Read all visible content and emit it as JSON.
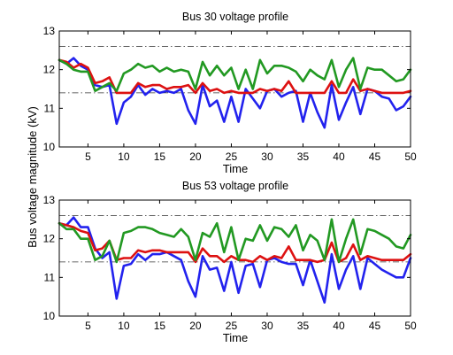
{
  "chart_data": [
    {
      "type": "line",
      "title": "Bus 30 voltage profile",
      "xlabel": "Time",
      "ylabel": "Bus voltage magnitude (kV)",
      "xlim": [
        1,
        50
      ],
      "ylim": [
        10,
        13
      ],
      "xticks": [
        "5",
        "10",
        "15",
        "20",
        "25",
        "30",
        "35",
        "40",
        "45",
        "50"
      ],
      "yticks": [
        "10",
        "11",
        "12",
        "13"
      ],
      "reference_lines": [
        12.6,
        11.4
      ],
      "grid": false,
      "series": [
        {
          "color": "#2222ee",
          "values": [
            12.25,
            12.15,
            12.3,
            12.1,
            12.0,
            11.6,
            11.55,
            11.6,
            10.6,
            11.15,
            11.3,
            11.6,
            11.35,
            11.5,
            11.4,
            11.45,
            11.4,
            11.5,
            10.95,
            10.6,
            11.6,
            11.05,
            11.2,
            10.65,
            11.3,
            10.65,
            11.5,
            11.25,
            11.0,
            11.45,
            11.5,
            11.3,
            11.4,
            11.45,
            10.65,
            11.4,
            10.9,
            10.5,
            11.6,
            10.7,
            11.15,
            11.55,
            10.85,
            11.5,
            11.45,
            11.3,
            11.25,
            10.95,
            11.05,
            11.3
          ]
        },
        {
          "color": "#dd1111",
          "values": [
            12.25,
            12.2,
            12.05,
            12.15,
            12.05,
            11.65,
            11.7,
            11.8,
            11.4,
            11.4,
            11.4,
            11.65,
            11.55,
            11.6,
            11.6,
            11.5,
            11.55,
            11.55,
            11.6,
            11.4,
            11.65,
            11.45,
            11.5,
            11.4,
            11.45,
            11.4,
            11.4,
            11.4,
            11.5,
            11.45,
            11.5,
            11.45,
            11.7,
            11.4,
            11.4,
            11.4,
            11.4,
            11.4,
            11.7,
            11.4,
            11.4,
            11.75,
            11.45,
            11.5,
            11.45,
            11.4,
            11.4,
            11.4,
            11.4,
            11.45
          ]
        },
        {
          "color": "#229922",
          "values": [
            12.25,
            12.15,
            12.0,
            11.95,
            11.95,
            11.45,
            11.55,
            11.65,
            11.45,
            11.9,
            12.0,
            12.15,
            12.05,
            12.1,
            11.95,
            12.05,
            11.95,
            12.0,
            11.95,
            11.5,
            12.2,
            11.85,
            12.1,
            11.85,
            12.05,
            11.5,
            12.0,
            11.5,
            12.25,
            11.9,
            12.1,
            12.1,
            12.05,
            11.95,
            11.7,
            12.0,
            11.85,
            11.75,
            12.25,
            11.55,
            12.0,
            12.3,
            11.5,
            12.05,
            12.0,
            12.0,
            11.85,
            11.7,
            11.75,
            12.0
          ]
        }
      ]
    },
    {
      "type": "line",
      "title": "Bus 53 voltage profile",
      "xlabel": "Time",
      "ylabel": "Bus voltage magnitude (kV)",
      "xlim": [
        1,
        50
      ],
      "ylim": [
        10,
        13
      ],
      "xticks": [
        "5",
        "10",
        "15",
        "20",
        "25",
        "30",
        "35",
        "40",
        "45",
        "50"
      ],
      "yticks": [
        "10",
        "11",
        "12",
        "13"
      ],
      "reference_lines": [
        12.6,
        11.4
      ],
      "grid": false,
      "series": [
        {
          "color": "#2222ee",
          "values": [
            12.4,
            12.35,
            12.55,
            12.3,
            12.3,
            11.75,
            11.5,
            11.65,
            10.45,
            11.3,
            11.35,
            11.6,
            11.45,
            11.6,
            11.6,
            11.65,
            11.55,
            11.45,
            10.9,
            10.5,
            11.55,
            11.2,
            11.25,
            10.65,
            11.4,
            10.6,
            11.3,
            11.35,
            10.75,
            11.45,
            11.5,
            11.4,
            11.35,
            11.35,
            10.8,
            11.45,
            10.9,
            10.35,
            11.6,
            10.7,
            11.2,
            11.55,
            10.7,
            11.5,
            11.35,
            11.2,
            11.1,
            11.0,
            11.0,
            11.5
          ]
        },
        {
          "color": "#dd1111",
          "values": [
            12.4,
            12.35,
            12.3,
            12.2,
            12.15,
            11.7,
            11.75,
            11.95,
            11.45,
            11.5,
            11.5,
            11.7,
            11.65,
            11.7,
            11.7,
            11.65,
            11.65,
            11.65,
            11.65,
            11.4,
            11.75,
            11.55,
            11.55,
            11.4,
            11.55,
            11.45,
            11.45,
            11.4,
            11.55,
            11.45,
            11.55,
            11.5,
            11.8,
            11.45,
            11.45,
            11.45,
            11.4,
            11.45,
            11.9,
            11.4,
            11.5,
            11.85,
            11.45,
            11.55,
            11.5,
            11.45,
            11.45,
            11.45,
            11.45,
            11.6
          ]
        },
        {
          "color": "#229922",
          "values": [
            12.4,
            12.25,
            12.25,
            12.0,
            12.0,
            11.45,
            11.55,
            11.95,
            11.4,
            12.15,
            12.2,
            12.3,
            12.3,
            12.25,
            12.15,
            12.1,
            12.05,
            12.25,
            12.05,
            11.45,
            12.15,
            12.05,
            12.4,
            11.65,
            12.3,
            11.45,
            12.0,
            11.95,
            12.35,
            11.95,
            12.3,
            12.25,
            12.05,
            12.35,
            11.7,
            12.1,
            11.95,
            11.45,
            12.5,
            11.4,
            12.0,
            12.5,
            11.6,
            12.25,
            12.2,
            12.1,
            12.0,
            11.8,
            11.75,
            12.1
          ]
        }
      ]
    }
  ]
}
